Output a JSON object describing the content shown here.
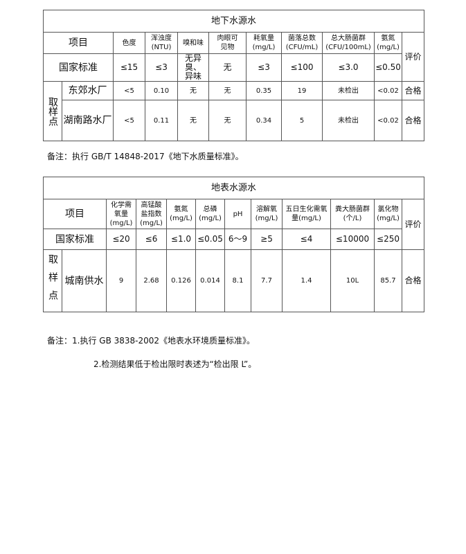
{
  "groundwater": {
    "title": "地下水源水",
    "item_label": "项目",
    "eval_label": "评价",
    "headers": [
      "色度",
      "浑浊度\n(NTU)",
      "嗅和味",
      "肉眼可\n见物",
      "耗氧量\n(mg/L)",
      "菌落总数\n(CFU/mL)",
      "总大肠菌群\n(CFU/100mL)",
      "氨氮\n(mg/L)"
    ],
    "standard_label": "国家标准",
    "standard": [
      "≤15",
      "≤3",
      "无异臭、\n异味",
      "无",
      "≤3",
      "≤100",
      "≤3.0",
      "≤0.50"
    ],
    "sample_label": "取样点",
    "rows": [
      {
        "site": "东郊水厂",
        "values": [
          "<5",
          "0.10",
          "无",
          "无",
          "0.35",
          "19",
          "未检出",
          "<0.02"
        ],
        "eval": "合格"
      },
      {
        "site": "湖南路水厂",
        "values": [
          "<5",
          "0.11",
          "无",
          "无",
          "0.34",
          "5",
          "未检出",
          "<0.02"
        ],
        "eval": "合格"
      }
    ]
  },
  "note1": "备注：执行 GB/T 14848-2017《地下水质量标准》。",
  "surface": {
    "title": "地表水源水",
    "item_label": "项目",
    "eval_label": "评价",
    "headers": [
      "化学需\n氧量\n(mg/L)",
      "高锰酸\n盐指数\n(mg/L)",
      "氨氮\n(mg/L)",
      "总磷\n(mg/L)",
      "pH",
      "溶解氧\n(mg/L)",
      "五日生化需氧\n量(mg/L)",
      "粪大肠菌群\n(个/L)",
      "氯化物\n(mg/L)"
    ],
    "standard_label": "国家标准",
    "standard": [
      "≤20",
      "≤6",
      "≤1.0",
      "≤0.05",
      "6～9",
      "≥5",
      "≤4",
      "≤10000",
      "≤250"
    ],
    "sample_label": "取样点",
    "rows": [
      {
        "site": "城南供水",
        "values": [
          "9",
          "2.68",
          "0.126",
          "0.014",
          "8.1",
          "7.7",
          "1.4",
          "10L",
          "85.7"
        ],
        "eval": "合格"
      }
    ]
  },
  "note2": "备注：1.执行 GB 3838-2002《地表水环境质量标准》。",
  "note3": "2.检测结果低于检出限时表述为“检出限 L”。"
}
